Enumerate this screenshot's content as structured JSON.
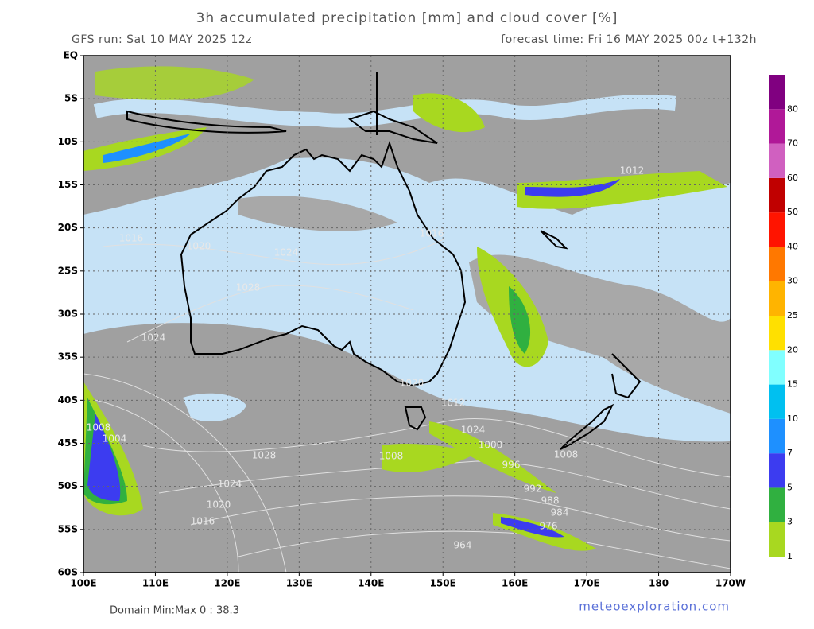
{
  "title": "3h accumulated precipitation [mm] and cloud cover [%]",
  "run": "GFS run: Sat 10 MAY 2025 12z",
  "forecast": "forecast time: Fri 16 MAY 2025 00z  t+132h",
  "lat_labels": [
    "EQ",
    "5S",
    "10S",
    "15S",
    "20S",
    "25S",
    "30S",
    "35S",
    "40S",
    "45S",
    "50S",
    "55S",
    "60S"
  ],
  "lon_labels": [
    "100E",
    "110E",
    "120E",
    "130E",
    "140E",
    "150E",
    "160E",
    "170E",
    "180",
    "170W"
  ],
  "colorbar": {
    "levels": [
      1,
      3,
      5,
      7,
      10,
      15,
      20,
      25,
      30,
      40,
      50,
      60,
      70,
      80
    ],
    "colors": [
      "#a8d820",
      "#30b040",
      "#3c3cf0",
      "#1e90ff",
      "#00c0f0",
      "#80ffff",
      "#ffe000",
      "#ffb400",
      "#ff7800",
      "#ff1400",
      "#c00000",
      "#d060c0",
      "#b01898",
      "#800080"
    ]
  },
  "isobar_labels": [
    "1016",
    "1020",
    "1024",
    "1028",
    "1024",
    "1016",
    "1012",
    "1020",
    "1012",
    "1024",
    "1000",
    "996",
    "992",
    "988",
    "984",
    "976",
    "964",
    "1008",
    "1004",
    "1028",
    "1008",
    "1024",
    "1020",
    "1016",
    "1008"
  ],
  "domain": "Domain Min:Max 0 : 38.3",
  "credit": "meteoexploration.com"
}
